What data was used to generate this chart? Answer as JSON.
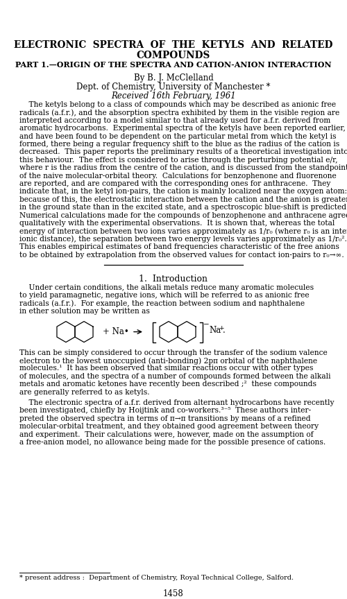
{
  "title_line1": "ELECTRONIC  SPECTRA  OF  THE  KETYLS  AND  RELATED",
  "title_line2": "COMPOUNDS",
  "subtitle": "PART 1.—ORIGIN OF THE SPECTRA AND CATION-ANION INTERACTION",
  "author": "By B. J. McClelland",
  "affiliation": "Dept. of Chemistry, University of Manchester *",
  "received": "Received 16th February, 1961",
  "section_heading": "1. Introduction",
  "footnote": "* present address :  Department of Chemistry, Royal Technical College, Salford.",
  "page_number": "1458",
  "abstract_lines": [
    "    The ketyls belong to a class of compounds which may be described as anionic free",
    "radicals (a.f.r.), and the absorption spectra exhibited by them in the visible region are",
    "interpreted according to a model similar to that already used for a.f.r. derived from",
    "aromatic hydrocarbons.  Experimental spectra of the ketyls have been reported earlier,",
    "and have been found to be dependent on the particular metal from which the ketyl is",
    "formed, there being a regular frequency shift to the blue as the radius of the cation is",
    "decreased.  This paper reports the preliminary results of a theoretical investigation into",
    "this behaviour.  The effect is considered to arise through the perturbing potential e/r,",
    "where r is the radius from the centre of the cation, and is discussed from the standpoint",
    "of the naive molecular-orbital theory.  Calculations for benzophenone and fluorenone",
    "are reported, and are compared with the corresponding ones for anthracene.  They",
    "indicate that, in the ketyl ion-pairs, the cation is mainly localized near the oxygen atom:",
    "because of this, the electrostatic interaction between the cation and the anion is greater",
    "in the ground state than in the excited state, and a spectroscopic blue-shift is predicted.",
    "Numerical calculations made for the compounds of benzophenone and anthracene agree",
    "qualitatively with the experimental observations.  It is shown that, whereas the total",
    "energy of interaction between two ions varies approximately as 1/r₀ (where r₀ is an inter-",
    "ionic distance), the separation between two energy levels varies approximately as 1/r₀².",
    "This enables empirical estimates of band frequencies characteristic of the free anions",
    "to be obtained by extrapolation from the observed values for contact ion-pairs to r₀→∞."
  ],
  "intro1_lines": [
    "    Under certain conditions, the alkali metals reduce many aromatic molecules",
    "to yield paramagnetic, negative ions, which will be referred to as anionic free",
    "radicals (a.f.r.).  For example, the reaction between sodium and naphthalene",
    "in ether solution may be written as"
  ],
  "intro2_lines": [
    "This can be simply considered to occur through the transfer of the sodium valence",
    "electron to the lowest unoccupied (anti-bonding) 2pπ orbital of the naphthalene",
    "molecules.¹  It has been observed that similar reactions occur with other types",
    "of molecules, and the spectra of a number of compounds formed between the alkali",
    "metals and aromatic ketones have recently been described ;²  these compounds",
    "are generally referred to as ketyls."
  ],
  "intro3_lines": [
    "    The electronic spectra of a.f.r. derived from alternant hydrocarbons have recently",
    "been investigated, chiefly by Hoijtink and co-workers.³⁻⁵  These authors inter-",
    "preted the observed spectra in terms of π→π transitions by means of a refined",
    "molecular-orbital treatment, and they obtained good agreement between theory",
    "and experiment.  Their calculations were, however, made on the assumption of",
    "a free-anion model, no allowance being made for the possible presence of cations."
  ]
}
